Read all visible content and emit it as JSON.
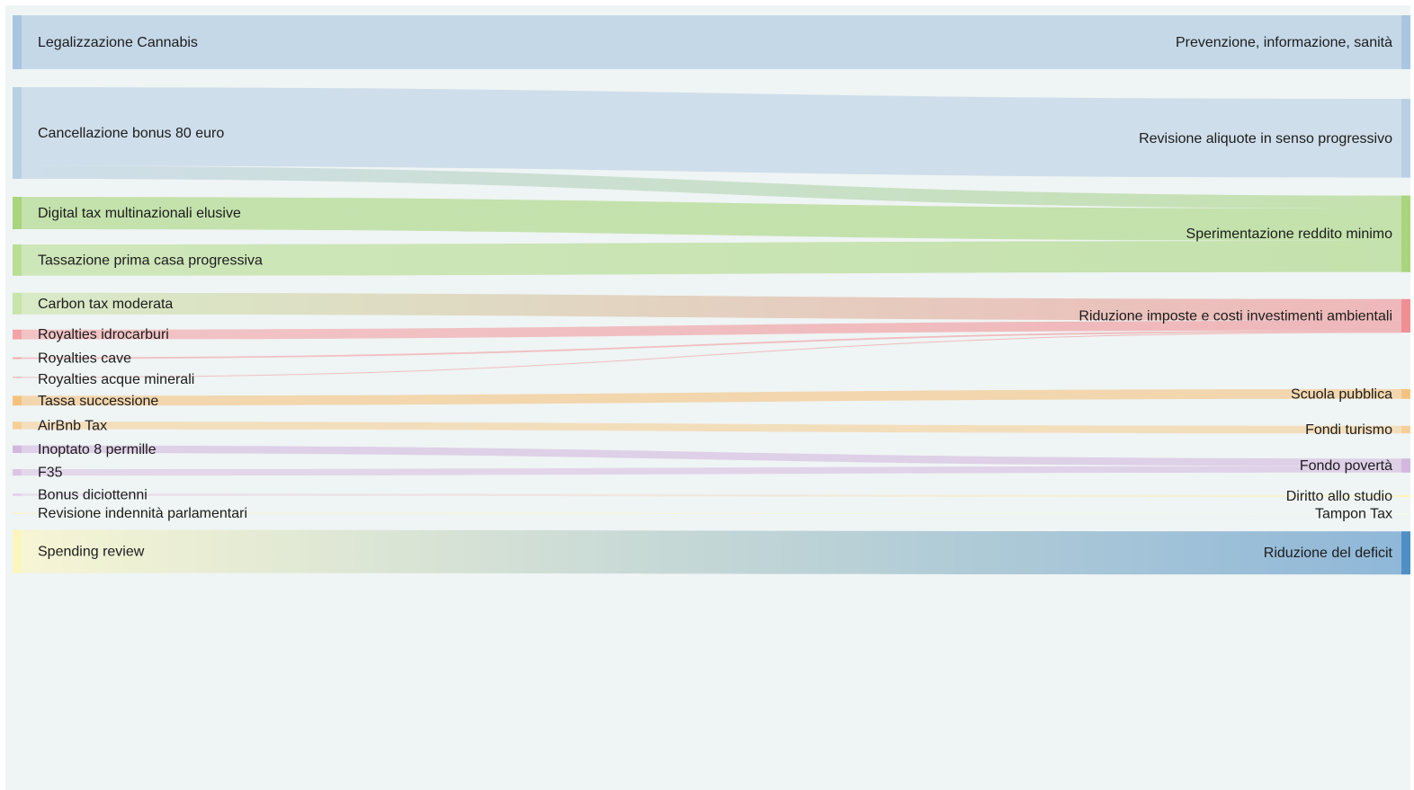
{
  "chart_data": {
    "type": "sankey",
    "title": "",
    "sources": [
      {
        "id": "cannabis",
        "label": "Legalizzazione Cannabis",
        "color": "#a9c6e0",
        "value": 100
      },
      {
        "id": "bonus80",
        "label": "Cancellazione bonus 80 euro",
        "color": "#b9cfe4",
        "value": 170
      },
      {
        "id": "digitaltax",
        "label": "Digital tax multinazionali elusive",
        "color": "#a8d57d",
        "value": 60
      },
      {
        "id": "primacasa",
        "label": "Tassazione prima casa progressiva",
        "color": "#b9de94",
        "value": 58
      },
      {
        "id": "carbontax",
        "label": "Carbon tax moderata",
        "color": "#c9e3a8",
        "value": 40
      },
      {
        "id": "royaltiesidro",
        "label": "Royalties idrocarburi",
        "color": "#f3a3a6",
        "value": 18
      },
      {
        "id": "royaltiescave",
        "label": "Royalties cave",
        "color": "#f3a3a6",
        "value": 3
      },
      {
        "id": "royaltiesacque",
        "label": "Royalties acque minerali",
        "color": "#f3a3a6",
        "value": 1
      },
      {
        "id": "successione",
        "label": "Tassa successione",
        "color": "#f5c27e",
        "value": 18
      },
      {
        "id": "airbnb",
        "label": "AirBnb Tax",
        "color": "#f6cf96",
        "value": 14
      },
      {
        "id": "inoptato",
        "label": "Inoptato 8 permille",
        "color": "#d3b8de",
        "value": 14
      },
      {
        "id": "f35",
        "label": "F35",
        "color": "#dcc4e4",
        "value": 12
      },
      {
        "id": "diciottenni",
        "label": "Bonus diciottenni",
        "color": "#e3cde9",
        "value": 4
      },
      {
        "id": "indennita",
        "label": "Revisione indennità parlamentari",
        "color": "#fff5b3",
        "value": 1
      },
      {
        "id": "spending",
        "label": "Spending review",
        "color": "#fbf6be",
        "value": 80
      }
    ],
    "targets": [
      {
        "id": "prevenzione",
        "label": "Prevenzione, informazione, sanità",
        "color": "#a9c6e0",
        "value": 100
      },
      {
        "id": "aliquote",
        "label": "Revisione aliquote in senso progressivo",
        "color": "#b9cfe4",
        "value": 146
      },
      {
        "id": "redditominimo",
        "label": "Sperimentazione reddito minimo",
        "color": "#a8d57d",
        "value": 142
      },
      {
        "id": "ambientali",
        "label": "Riduzione imposte e costi investimenti ambientali",
        "color": "#ef8f93",
        "value": 62
      },
      {
        "id": "scuola",
        "label": "Scuola pubblica",
        "color": "#f5c27e",
        "value": 18
      },
      {
        "id": "turismo",
        "label": "Fondi turismo",
        "color": "#f6cf96",
        "value": 14
      },
      {
        "id": "povertà",
        "label": "Fondo povertà",
        "color": "#d3b8de",
        "value": 26
      },
      {
        "id": "studio",
        "label": "Diritto allo studio",
        "color": "#fff5b3",
        "value": 4
      },
      {
        "id": "tampon",
        "label": "Tampon Tax",
        "color": "#fffbe0",
        "value": 1
      },
      {
        "id": "deficit",
        "label": "Riduzione del deficit",
        "color": "#4f8fc6",
        "value": 80
      }
    ],
    "links": [
      {
        "source": "cannabis",
        "target": "prevenzione",
        "value": 100
      },
      {
        "source": "bonus80",
        "target": "aliquote",
        "value": 146
      },
      {
        "source": "bonus80",
        "target": "redditominimo",
        "value": 24
      },
      {
        "source": "digitaltax",
        "target": "redditominimo",
        "value": 60
      },
      {
        "source": "primacasa",
        "target": "redditominimo",
        "value": 58
      },
      {
        "source": "carbontax",
        "target": "ambientali",
        "value": 40
      },
      {
        "source": "royaltiesidro",
        "target": "ambientali",
        "value": 18
      },
      {
        "source": "royaltiescave",
        "target": "ambientali",
        "value": 3
      },
      {
        "source": "royaltiesacque",
        "target": "ambientali",
        "value": 1
      },
      {
        "source": "successione",
        "target": "scuola",
        "value": 18
      },
      {
        "source": "airbnb",
        "target": "turismo",
        "value": 14
      },
      {
        "source": "inoptato",
        "target": "povertà",
        "value": 14
      },
      {
        "source": "f35",
        "target": "povertà",
        "value": 12
      },
      {
        "source": "diciottenni",
        "target": "studio",
        "value": 4
      },
      {
        "source": "indennita",
        "target": "tampon",
        "value": 1
      },
      {
        "source": "spending",
        "target": "deficit",
        "value": 80
      }
    ]
  }
}
